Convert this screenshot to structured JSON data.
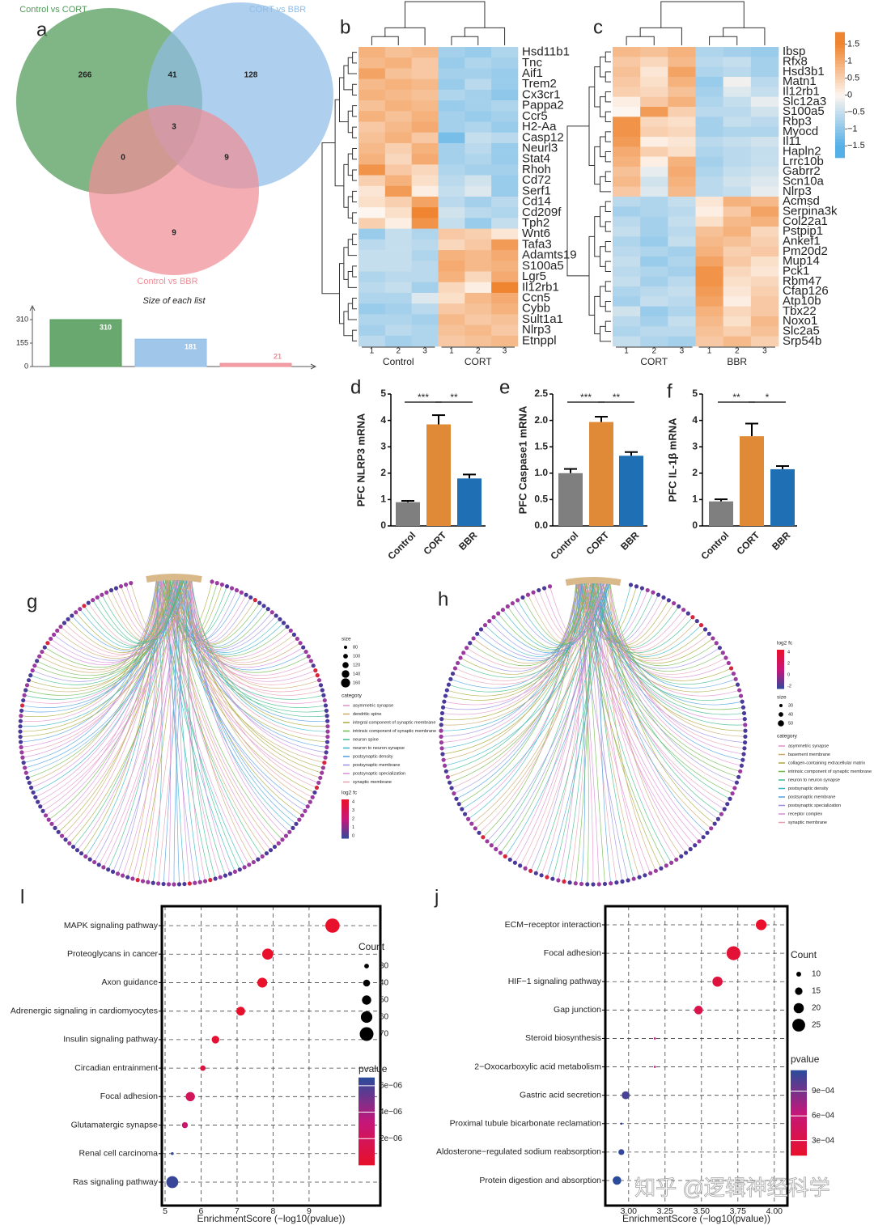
{
  "watermark": "知乎 @逻辑神经科学",
  "chart_data": [
    {
      "type": "venn",
      "panel": "a",
      "sets": [
        "Control vs CORT",
        "CORT vs BBR",
        "Control vs BBR"
      ],
      "colors": [
        "#4f9a56",
        "#8fbde6",
        "#ee8d96"
      ],
      "values": [
        266,
        41,
        128,
        3,
        0,
        9,
        9
      ],
      "subtitle": "Size of each list",
      "size_values": [
        310,
        181,
        21
      ],
      "size_ylim": [
        0,
        401
      ],
      "size_yticks": [
        0,
        155,
        310
      ]
    },
    {
      "type": "heatmap",
      "panel": "b",
      "groups": [
        "Control",
        "CORT"
      ],
      "categories": [
        "1",
        "2",
        "3",
        "1",
        "2",
        "3"
      ],
      "rows": [
        "Hsd11b1",
        "Tnc",
        "Aif1",
        "Trem2",
        "Cx3cr1",
        "Pappa2",
        "Ccr5",
        "H2-Aa",
        "Casp12",
        "Neurl3",
        "Stat4",
        "Rhoh",
        "Cd72",
        "Serf1",
        "Cd14",
        "Cd209f",
        "Tph2",
        "Wnt6",
        "Tafa3",
        "Adamts19",
        "S100a5",
        "Lgr5",
        "Il12rb1",
        "Ccn5",
        "Cybb",
        "Sult1a1",
        "Nlrp3",
        "Etnppl"
      ],
      "values": [
        [
          0.9,
          0.7,
          0.8,
          -0.8,
          -0.9,
          -0.7
        ],
        [
          0.8,
          0.9,
          0.6,
          -0.9,
          -0.7,
          -0.8
        ],
        [
          1.1,
          0.7,
          0.6,
          -0.8,
          -0.8,
          -0.9
        ],
        [
          0.8,
          0.9,
          0.8,
          -0.9,
          -0.6,
          -0.9
        ],
        [
          0.9,
          0.8,
          0.7,
          -0.7,
          -0.8,
          -1.0
        ],
        [
          0.7,
          0.9,
          0.8,
          -0.9,
          -0.8,
          -0.7
        ],
        [
          0.9,
          0.7,
          0.9,
          -0.8,
          -0.9,
          -0.8
        ],
        [
          0.6,
          0.8,
          1.0,
          -0.8,
          -0.7,
          -0.9
        ],
        [
          0.7,
          0.9,
          0.6,
          -1.2,
          -0.5,
          -0.6
        ],
        [
          0.8,
          0.5,
          0.9,
          -0.8,
          -0.6,
          -0.9
        ],
        [
          0.9,
          0.4,
          1.0,
          -0.8,
          -0.7,
          -0.9
        ],
        [
          1.3,
          0.6,
          0.4,
          -0.7,
          -0.8,
          -0.8
        ],
        [
          0.5,
          0.9,
          0.3,
          -0.6,
          -0.4,
          -0.9
        ],
        [
          0.2,
          1.2,
          0.1,
          -0.5,
          -0.3,
          -0.9
        ],
        [
          0.3,
          0.5,
          1.1,
          -0.6,
          -0.8,
          -0.6
        ],
        [
          0.0,
          0.3,
          1.5,
          -0.4,
          -0.6,
          -0.7
        ],
        [
          0.5,
          0.1,
          1.3,
          -0.5,
          -0.9,
          -0.5
        ],
        [
          -0.9,
          -0.5,
          -0.7,
          0.6,
          0.5,
          0.2
        ],
        [
          -0.6,
          -0.5,
          -0.6,
          0.4,
          0.6,
          1.2
        ],
        [
          -0.5,
          -0.5,
          -0.7,
          0.9,
          0.8,
          1.0
        ],
        [
          -0.5,
          -0.5,
          -0.6,
          1.0,
          0.8,
          0.9
        ],
        [
          -0.7,
          -0.6,
          -0.6,
          0.9,
          0.4,
          1.0
        ],
        [
          -0.6,
          -0.5,
          -0.8,
          0.4,
          0.1,
          1.5
        ],
        [
          -0.7,
          -0.7,
          -0.3,
          0.3,
          0.8,
          1.0
        ],
        [
          -0.9,
          -0.8,
          -0.6,
          0.6,
          0.7,
          0.9
        ],
        [
          -0.7,
          -0.7,
          -0.8,
          0.8,
          0.6,
          0.7
        ],
        [
          -0.8,
          -0.6,
          -0.7,
          0.7,
          0.8,
          0.6
        ],
        [
          -0.6,
          -0.8,
          -0.7,
          0.6,
          0.7,
          0.8
        ]
      ]
    },
    {
      "type": "heatmap",
      "panel": "c",
      "groups": [
        "CORT",
        "BBR"
      ],
      "categories": [
        "1",
        "2",
        "3",
        "1",
        "2",
        "3"
      ],
      "rows": [
        "Ibsp",
        "Rfx8",
        "Hsd3b1",
        "Matn1",
        "Il12rb1",
        "Slc12a3",
        "S100a5",
        "Rbp3",
        "Myocd",
        "Il11",
        "Hapln2",
        "Lrrc10b",
        "Gabrr2",
        "Scn10a",
        "Nlrp3",
        "Acmsd",
        "Serpina3k",
        "Col22a1",
        "Pstpip1",
        "Ankef1",
        "Pm20d2",
        "Mup14",
        "Pck1",
        "Rbm47",
        "Cfap126",
        "Atp10b",
        "Tbx22",
        "Noxo1",
        "Slc2a5",
        "Srp54b"
      ],
      "values": [
        [
          0.8,
          0.7,
          0.9,
          -0.7,
          -0.8,
          -0.9
        ],
        [
          0.6,
          0.4,
          0.8,
          -0.6,
          -0.5,
          -0.8
        ],
        [
          0.7,
          0.2,
          1.1,
          -0.7,
          -0.6,
          -0.8
        ],
        [
          0.6,
          0.3,
          0.9,
          -0.9,
          -0.1,
          -0.6
        ],
        [
          0.5,
          0.4,
          0.7,
          -0.8,
          -0.3,
          -0.5
        ],
        [
          0.1,
          0.6,
          0.9,
          -0.7,
          -0.5,
          -0.2
        ],
        [
          0.0,
          1.2,
          0.5,
          -0.6,
          -0.6,
          -0.4
        ],
        [
          1.3,
          0.4,
          0.3,
          -0.8,
          -0.5,
          -0.6
        ],
        [
          1.3,
          0.5,
          0.4,
          -0.8,
          -0.7,
          -0.7
        ],
        [
          1.2,
          0.1,
          0.2,
          -0.6,
          -0.5,
          -0.4
        ],
        [
          1.0,
          0.5,
          0.3,
          -0.7,
          -0.6,
          -0.5
        ],
        [
          0.9,
          0.1,
          0.9,
          -0.8,
          -0.6,
          -0.5
        ],
        [
          0.7,
          -0.2,
          1.0,
          -0.7,
          -0.5,
          -0.4
        ],
        [
          0.8,
          -0.4,
          0.9,
          -0.6,
          -0.4,
          -0.3
        ],
        [
          0.6,
          -0.3,
          0.8,
          -0.6,
          -0.5,
          -0.2
        ],
        [
          -0.6,
          -0.7,
          -0.5,
          0.2,
          0.9,
          0.8
        ],
        [
          -0.8,
          -0.7,
          -0.6,
          0.1,
          0.6,
          1.1
        ],
        [
          -0.6,
          -0.8,
          -0.5,
          0.3,
          0.8,
          0.9
        ],
        [
          -0.5,
          -0.8,
          -0.6,
          0.7,
          0.9,
          0.4
        ],
        [
          -0.7,
          -0.9,
          -0.5,
          0.8,
          0.7,
          0.5
        ],
        [
          -0.6,
          -0.7,
          -0.8,
          0.9,
          0.5,
          0.6
        ],
        [
          -0.5,
          -0.9,
          -0.7,
          1.1,
          0.6,
          0.3
        ],
        [
          -0.6,
          -0.7,
          -0.8,
          1.3,
          0.4,
          0.2
        ],
        [
          -0.5,
          -0.8,
          -0.6,
          1.3,
          0.3,
          0.4
        ],
        [
          -0.7,
          -0.6,
          -0.5,
          1.2,
          0.2,
          0.5
        ],
        [
          -0.8,
          -0.5,
          -0.6,
          1.1,
          0.1,
          0.6
        ],
        [
          -0.4,
          -0.9,
          -0.7,
          0.9,
          0.4,
          0.6
        ],
        [
          -0.6,
          -0.8,
          -0.5,
          0.8,
          0.3,
          0.8
        ],
        [
          -0.7,
          -0.6,
          -0.6,
          0.7,
          0.5,
          0.7
        ],
        [
          -0.5,
          -0.7,
          -0.8,
          0.6,
          0.8,
          0.5
        ]
      ],
      "colorbar_lim": [
        -1.85,
        1.85
      ],
      "colorbar_ticks": [
        1.5,
        1,
        0.5,
        0,
        {
          "value": -0.5,
          "label": "−0.5"
        },
        {
          "value": -1,
          "label": "−1"
        },
        {
          "value": -1.5,
          "label": "−1.5"
        }
      ]
    },
    {
      "type": "bar",
      "panel": "d",
      "ylabel": "PFC NLRP3 mRNA",
      "categories": [
        "Control",
        "CORT",
        "BBR"
      ],
      "values": [
        0.9,
        3.85,
        1.8
      ],
      "errors": [
        0.05,
        0.35,
        0.15
      ],
      "colors": [
        "#7f7f7f",
        "#e08a37",
        "#1f6fb5"
      ],
      "ylim": [
        0,
        5
      ],
      "yticks": [
        0,
        1,
        2,
        3,
        4,
        5
      ],
      "annotations": [
        "***",
        "**"
      ]
    },
    {
      "type": "bar",
      "panel": "e",
      "ylabel": "PFC Caspase1 mRNA",
      "categories": [
        "Control",
        "CORT",
        "BBR"
      ],
      "values": [
        1.0,
        1.97,
        1.33
      ],
      "errors": [
        0.08,
        0.1,
        0.07
      ],
      "colors": [
        "#7f7f7f",
        "#e08a37",
        "#1f6fb5"
      ],
      "ylim": [
        0,
        2.5
      ],
      "yticks": [
        {
          "value": 0,
          "label": "0.0"
        },
        0.5,
        {
          "value": 1,
          "label": "1.0"
        },
        1.5,
        {
          "value": 2,
          "label": "2.0"
        },
        2.5
      ],
      "annotations": [
        "***",
        "**"
      ]
    },
    {
      "type": "bar",
      "panel": "f",
      "ylabel": "PFC IL-1β mRNA",
      "categories": [
        "Control",
        "CORT",
        "BBR"
      ],
      "values": [
        0.93,
        3.4,
        2.15
      ],
      "errors": [
        0.08,
        0.48,
        0.12
      ],
      "colors": [
        "#7f7f7f",
        "#e08a37",
        "#1f6fb5"
      ],
      "ylim": [
        0,
        5
      ],
      "yticks": [
        0,
        1,
        2,
        3,
        4,
        5
      ],
      "annotations": [
        "**",
        "*"
      ]
    },
    {
      "type": "network",
      "panel": "g",
      "size_title": "size",
      "size_legend": [
        80,
        100,
        120,
        140,
        160
      ],
      "category_title": "category",
      "categories": [
        "asymmetric synapse",
        "dendritic spine",
        "integral component of synaptic membrane",
        "intrinsic component of synaptic membrane",
        "neuron spine",
        "neuron to neuron synapse",
        "postsynaptic density",
        "postsynaptic membrane",
        "postsynaptic specialization",
        "synaptic membrane"
      ],
      "category_colors": [
        "#e48fc9",
        "#c9a86a",
        "#a8a83a",
        "#6fb84a",
        "#3dbb8a",
        "#35b3c7",
        "#4f9fe0",
        "#9a8fe0",
        "#d78ad8",
        "#e89fb0"
      ],
      "fc_title": "log2 fc",
      "fc_ticks": [
        4,
        3,
        2,
        1,
        0
      ]
    },
    {
      "type": "network",
      "panel": "h",
      "size_title": "size",
      "size_legend": [
        30,
        40,
        50
      ],
      "category_title": "category",
      "categories": [
        "asymmetric synapse",
        "basement membrane",
        "collagen-containing extracellular matrix",
        "intrinsic component of synaptic membrane",
        "neuron to neuron synapse",
        "postsynaptic density",
        "postsynaptic membrane",
        "postsynaptic specialization",
        "receptor complex",
        "synaptic membrane"
      ],
      "category_colors": [
        "#e48fc9",
        "#c9a86a",
        "#a8a83a",
        "#6fb84a",
        "#3dbb8a",
        "#35b3c7",
        "#4f9fe0",
        "#9a8fe0",
        "#d78ad8",
        "#e89fb0"
      ],
      "fc_title": "log2 fc",
      "fc_ticks": [
        4,
        2,
        0,
        -2
      ]
    },
    {
      "type": "dot",
      "panel": "l",
      "xlabel": "EnrichmentScore (−log10(pvalue))",
      "categories": [
        "MAPK signaling pathway",
        "Proteoglycans in cancer",
        "Axon guidance",
        "Adrenergic signaling in cardiomyocytes",
        "Insulin signaling pathway",
        "Circadian entrainment",
        "Focal adhesion",
        "Glutamatergic synapse",
        "Renal cell carcinoma",
        "Ras signaling pathway"
      ],
      "values": [
        9.65,
        7.85,
        7.7,
        7.1,
        6.4,
        6.05,
        5.7,
        5.55,
        5.2,
        5.2
      ],
      "counts": [
        72,
        58,
        53,
        48,
        43,
        33,
        50,
        36,
        22,
        62
      ],
      "pvalues": [
        2.2e-10,
        1.4e-08,
        2e-08,
        8e-08,
        4e-07,
        8.9e-07,
        2e-06,
        2.8e-06,
        6.3e-06,
        6.3e-06
      ],
      "xlim": [
        4.91,
        10.98
      ],
      "xticks": [
        5,
        6,
        7,
        8,
        9
      ],
      "count_title": "Count",
      "count_legend": [
        30,
        40,
        50,
        60,
        70
      ],
      "pvalue_title": "pvalue",
      "clim": [
        0,
        6.6e-06
      ],
      "pvalue_ticks": [
        {
          "value": 2e-06,
          "label": "2e−06"
        },
        {
          "value": 4e-06,
          "label": "4e−06"
        },
        {
          "value": 6e-06,
          "label": "6e−06"
        }
      ]
    },
    {
      "type": "dot",
      "panel": "j",
      "xlabel": "EnrichmentScore (−log10(pvalue))",
      "categories": [
        "ECM−receptor interaction",
        "Focal adhesion",
        "HIF−1 signaling pathway",
        "Gap junction",
        "Steroid biosynthesis",
        "2−Oxocarboxylic acid metabolism",
        "Gastric acid secretion",
        "Proximal tubule bicarbonate reclamation",
        "Aldosterone−regulated sodium reabsorption",
        "Protein digestion and absorption"
      ],
      "values": [
        3.91,
        3.72,
        3.61,
        3.48,
        3.18,
        3.18,
        2.98,
        2.95,
        2.95,
        2.92
      ],
      "counts": [
        21,
        27,
        20,
        17,
        5,
        5,
        16,
        5,
        12,
        17
      ],
      "pvalues": [
        0.000123,
        0.00019,
        0.000245,
        0.00033,
        0.00066,
        0.00066,
        0.00105,
        0.00112,
        0.00112,
        0.0012
      ],
      "xlim": [
        2.84,
        4.09
      ],
      "xticks": [
        {
          "value": 3,
          "label": "3.00"
        },
        3.25,
        {
          "value": 3.5,
          "label": "3.50"
        },
        3.75,
        {
          "value": 4,
          "label": "4.00"
        }
      ],
      "count_title": "Count",
      "count_legend": [
        10,
        15,
        20,
        25
      ],
      "pvalue_title": "pvalue",
      "clim": [
        0.00012,
        0.00115
      ],
      "pvalue_ticks": [
        {
          "value": 0.0003,
          "label": "3e−04"
        },
        {
          "value": 0.0006,
          "label": "6e−04"
        },
        {
          "value": 0.0009,
          "label": "9e−04"
        }
      ]
    }
  ]
}
